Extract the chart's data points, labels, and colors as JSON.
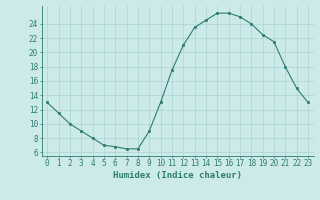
{
  "x": [
    0,
    1,
    2,
    3,
    4,
    5,
    6,
    7,
    8,
    9,
    10,
    11,
    12,
    13,
    14,
    15,
    16,
    17,
    18,
    19,
    20,
    21,
    22,
    23
  ],
  "y": [
    13,
    11.5,
    10,
    9,
    8,
    7,
    6.8,
    6.5,
    6.5,
    9,
    13,
    17.5,
    21,
    23.5,
    24.5,
    25.5,
    25.5,
    25,
    24,
    22.5,
    21.5,
    18,
    15,
    13
  ],
  "xlabel": "Humidex (Indice chaleur)",
  "ylim": [
    5.5,
    26.5
  ],
  "xlim": [
    -0.5,
    23.5
  ],
  "yticks": [
    6,
    8,
    10,
    12,
    14,
    16,
    18,
    20,
    22,
    24
  ],
  "xticks": [
    0,
    1,
    2,
    3,
    4,
    5,
    6,
    7,
    8,
    9,
    10,
    11,
    12,
    13,
    14,
    15,
    16,
    17,
    18,
    19,
    20,
    21,
    22,
    23
  ],
  "line_color": "#2e7d6e",
  "marker_color": "#2e7d6e",
  "bg_color": "#cceaea",
  "grid_color": "#aad4d4",
  "tick_color": "#2e7d6e",
  "label_color": "#2e7d6e",
  "xlabel_fontsize": 6.5,
  "tick_fontsize": 5.5
}
